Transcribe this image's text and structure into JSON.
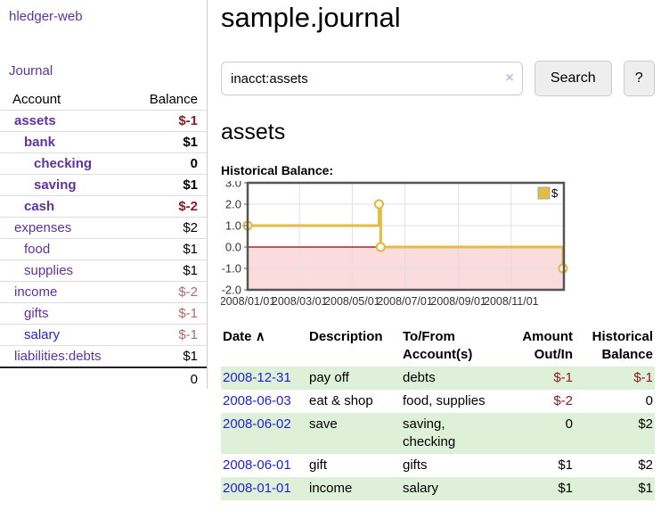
{
  "app": {
    "title": "hledger-web"
  },
  "sidebar": {
    "journal_label": "Journal",
    "accounts": {
      "header_account": "Account",
      "header_balance": "Balance",
      "rows": [
        {
          "name": "assets",
          "balance": "$-1",
          "depth": 0,
          "bold": true,
          "name_color": "purple",
          "amount_color": "strong-neg"
        },
        {
          "name": "bank",
          "balance": "$1",
          "depth": 1,
          "bold": true,
          "name_color": "purple",
          "amount_color": "normal"
        },
        {
          "name": "checking",
          "balance": "0",
          "depth": 2,
          "bold": true,
          "name_color": "purple",
          "amount_color": "normal"
        },
        {
          "name": "saving",
          "balance": "$1",
          "depth": 2,
          "bold": true,
          "name_color": "purple",
          "amount_color": "normal"
        },
        {
          "name": "cash",
          "balance": "$-2",
          "depth": 1,
          "bold": true,
          "name_color": "purple",
          "amount_color": "strong-neg"
        },
        {
          "name": "expenses",
          "balance": "$2",
          "depth": 0,
          "bold": false,
          "name_color": "purple",
          "amount_color": "normal"
        },
        {
          "name": "food",
          "balance": "$1",
          "depth": 1,
          "bold": false,
          "name_color": "purple",
          "amount_color": "normal"
        },
        {
          "name": "supplies",
          "balance": "$1",
          "depth": 1,
          "bold": false,
          "name_color": "purple",
          "amount_color": "normal"
        },
        {
          "name": "income",
          "balance": "$-2",
          "depth": 0,
          "bold": false,
          "name_color": "purple",
          "amount_color": "soft-neg"
        },
        {
          "name": "gifts",
          "balance": "$-1",
          "depth": 1,
          "bold": false,
          "name_color": "purple",
          "amount_color": "soft-neg"
        },
        {
          "name": "salary",
          "balance": "$-1",
          "depth": 1,
          "bold": false,
          "name_color": "blue",
          "amount_color": "soft-neg"
        },
        {
          "name": "liabilities:debts",
          "balance": "$1",
          "depth": 0,
          "bold": false,
          "name_color": "purple",
          "amount_color": "normal"
        }
      ],
      "total": "0"
    }
  },
  "main": {
    "title": "sample.journal",
    "search": {
      "value": "inacct:assets",
      "clear_icon": "×",
      "button_label": "Search",
      "help_label": "?"
    },
    "account_heading": "assets"
  },
  "chart_data": {
    "type": "line",
    "step": true,
    "title": "Historical Balance:",
    "series": [
      {
        "name": "$",
        "points": [
          [
            "2008-01-01",
            1
          ],
          [
            "2008-06-01",
            2
          ],
          [
            "2008-06-03",
            0
          ],
          [
            "2008-12-31",
            -1
          ]
        ]
      }
    ],
    "x_ticks": [
      "2008/01/01",
      "2008/03/01",
      "2008/05/01",
      "2008/07/01",
      "2008/09/01",
      "2008/11/01"
    ],
    "y_ticks": [
      3.0,
      2.0,
      1.0,
      0.0,
      -1.0,
      -2.0
    ],
    "xlim": [
      "2008-01-01",
      "2009-01-01"
    ],
    "ylim": [
      -2,
      3
    ],
    "grid": true,
    "legend": {
      "label": "$",
      "position": "top-right"
    }
  },
  "register": {
    "headers": {
      "date": "Date",
      "sort_icon": "∧",
      "description": "Description",
      "accounts": "To/From Account(s)",
      "amount": "Amount Out/In",
      "balance": "Historical Balance"
    },
    "rows": [
      {
        "date": "2008-12-31",
        "description": "pay off",
        "accounts": "debts",
        "amount": "$-1",
        "balance": "$-1",
        "amount_neg": true,
        "balance_neg": true,
        "shaded": true
      },
      {
        "date": "2008-06-03",
        "description": "eat & shop",
        "accounts": "food, supplies",
        "amount": "$-2",
        "balance": "0",
        "amount_neg": true,
        "balance_neg": false,
        "shaded": false
      },
      {
        "date": "2008-06-02",
        "description": "save",
        "accounts": "saving, checking",
        "amount": "0",
        "balance": "$2",
        "amount_neg": false,
        "balance_neg": false,
        "shaded": true
      },
      {
        "date": "2008-06-01",
        "description": "gift",
        "accounts": "gifts",
        "amount": "$1",
        "balance": "$2",
        "amount_neg": false,
        "balance_neg": false,
        "shaded": false
      },
      {
        "date": "2008-01-01",
        "description": "income",
        "accounts": "salary",
        "amount": "$1",
        "balance": "$1",
        "amount_neg": false,
        "balance_neg": false,
        "shaded": true
      }
    ]
  },
  "colors": {
    "purple": "#5e339e",
    "link_blue": "#2323cc",
    "neg_strong": "#8b1c24",
    "neg_soft": "#b36a6a",
    "row_green": "#dff0d8",
    "chart_gold": "#e3bb45",
    "chart_pink": "#fbdcdc",
    "chart_zero": "#990000",
    "chart_border": "#555555",
    "chart_grid": "#e0e0e0"
  }
}
